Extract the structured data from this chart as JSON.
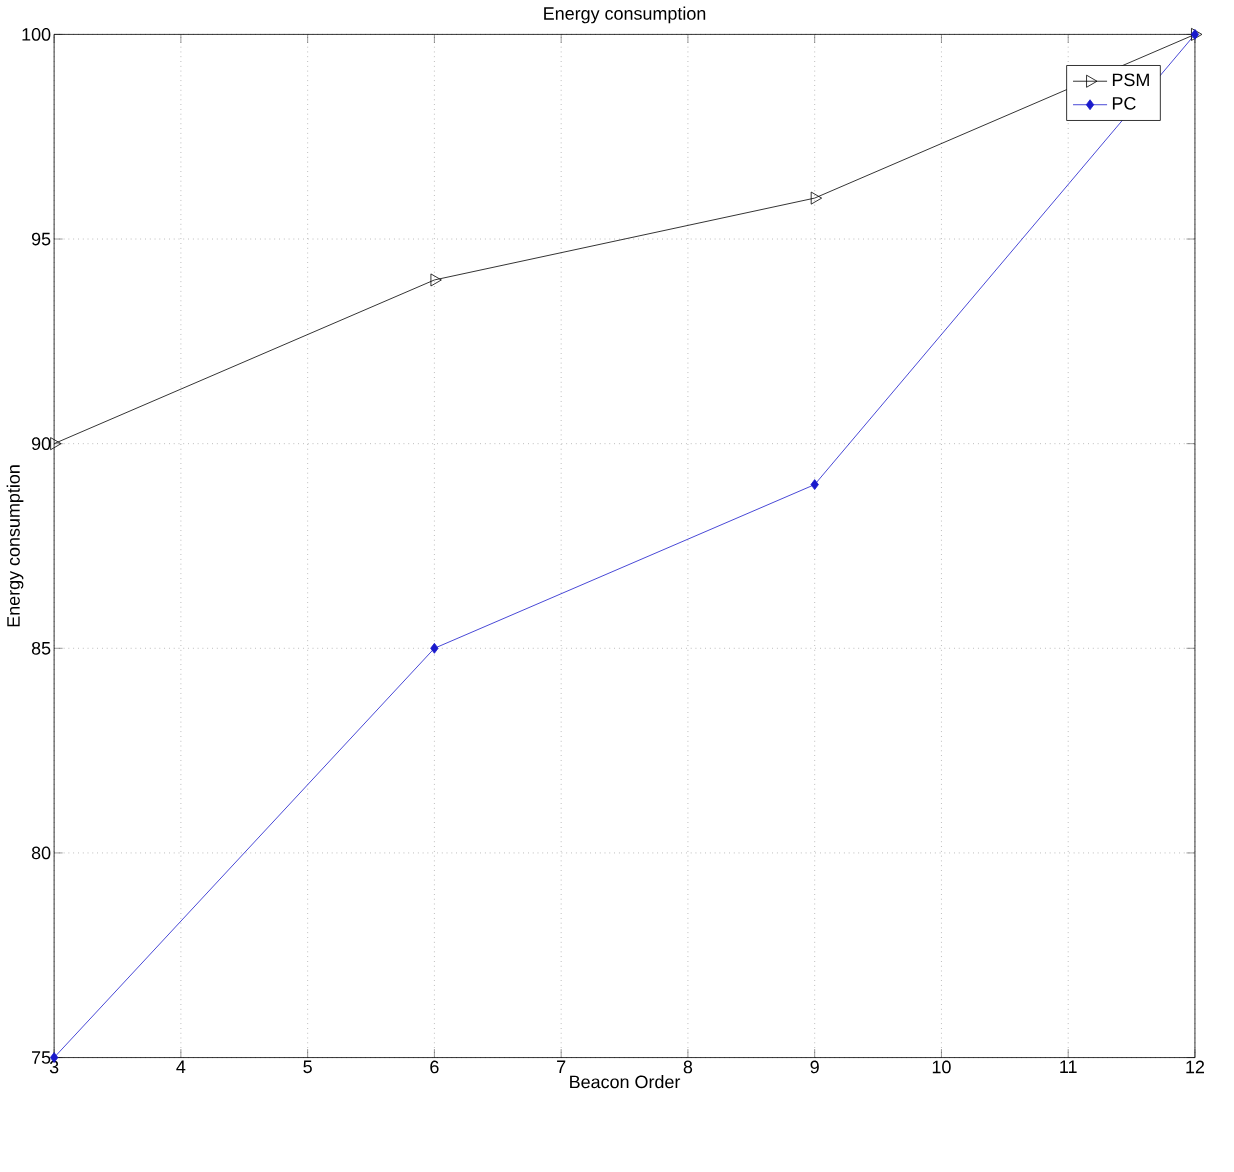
{
  "chart_data": {
    "type": "line",
    "title": "Energy consumption",
    "xlabel": "Beacon Order",
    "ylabel": "Energy consumption",
    "x": [
      3,
      6,
      9,
      12
    ],
    "series": [
      {
        "name": "PSM",
        "color": "#000000",
        "marker": "triangle",
        "values": [
          90,
          94,
          96,
          100
        ]
      },
      {
        "name": "PC",
        "color": "#1a1acc",
        "marker": "diamond",
        "values": [
          75,
          85,
          89,
          100
        ]
      }
    ],
    "xlim": [
      3,
      12
    ],
    "ylim": [
      75,
      100
    ],
    "xticks": [
      3,
      4,
      5,
      6,
      7,
      8,
      9,
      10,
      11,
      12
    ],
    "yticks": [
      75,
      80,
      85,
      90,
      95,
      100
    ],
    "grid": true,
    "legend": "top right",
    "line_style": "solid"
  }
}
